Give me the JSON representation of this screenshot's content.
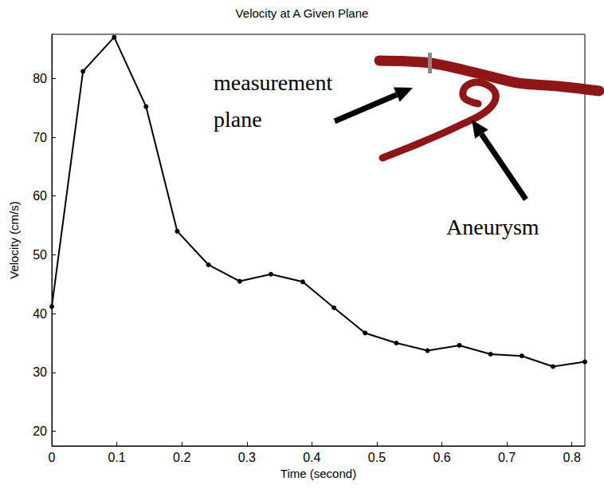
{
  "chart_data": {
    "type": "line",
    "title": "Velocity at A Given Plane",
    "xlabel": "Time (second)",
    "ylabel": "Velocity (cm/s)",
    "x": [
      0,
      0.048,
      0.096,
      0.145,
      0.193,
      0.241,
      0.289,
      0.337,
      0.386,
      0.434,
      0.482,
      0.53,
      0.578,
      0.627,
      0.675,
      0.723,
      0.771,
      0.82
    ],
    "values": [
      41.2,
      81.2,
      87,
      75.2,
      54,
      48.3,
      45.5,
      46.7,
      45.4,
      41,
      36.7,
      35,
      33.7,
      34.6,
      33.1,
      32.8,
      31,
      31.8
    ],
    "color": "#000000",
    "marker": "circle",
    "line_style": "solid",
    "grid": false,
    "xlim": [
      0,
      0.82
    ],
    "ylim": [
      17.5,
      87.5
    ],
    "xticks": [
      0,
      0.1,
      0.2,
      0.3,
      0.4,
      0.5,
      0.6,
      0.7,
      0.8
    ],
    "yticks": [
      20,
      30,
      40,
      50,
      60,
      70,
      80
    ],
    "annotations": [
      {
        "text": "measurement plane"
      },
      {
        "text": "Aneurysm"
      }
    ]
  }
}
